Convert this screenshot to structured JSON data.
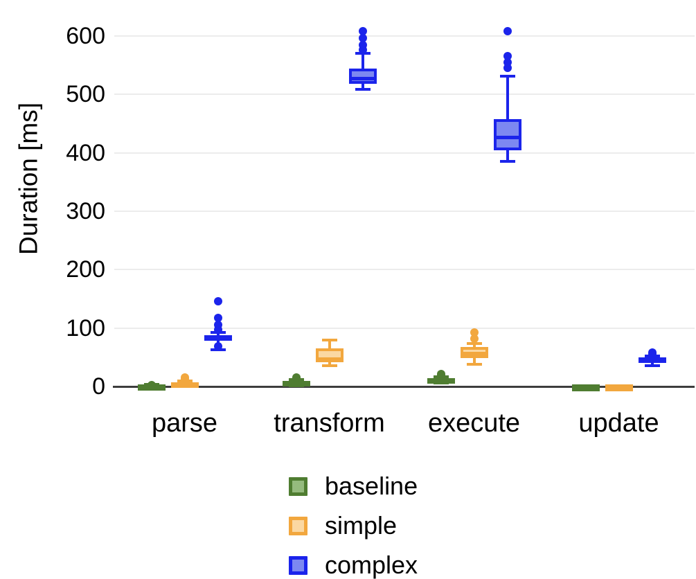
{
  "chart_data": {
    "type": "boxplot",
    "title": "",
    "xlabel": "",
    "ylabel": "Duration [ms]",
    "ylim": [
      0,
      620
    ],
    "yticks": [
      "0",
      "100",
      "200",
      "300",
      "400",
      "500",
      "600"
    ],
    "ytick_values": [
      0,
      100,
      200,
      300,
      400,
      500,
      600
    ],
    "categories": [
      "parse",
      "transform",
      "execute",
      "update"
    ],
    "grid": "horizontal light gray major lines",
    "legend_position": "bottom-center",
    "colors": {
      "grid": "#ececec",
      "axis": "#3d3d3d",
      "text": "#000000",
      "background": "#ffffff"
    },
    "series": [
      {
        "name": "baseline",
        "stroke": "#4f7d31",
        "fill": "#95bb7e",
        "boxes": [
          {
            "category": "parse",
            "lo": 0,
            "q1": 0,
            "med": 1,
            "q3": 2,
            "hi": 3,
            "outliers": [
              2
            ]
          },
          {
            "category": "transform",
            "lo": 1,
            "q1": 3,
            "med": 6,
            "q3": 10,
            "hi": 12,
            "outliers": [
              14,
              16
            ]
          },
          {
            "category": "execute",
            "lo": 6,
            "q1": 9,
            "med": 11,
            "q3": 14,
            "hi": 17,
            "outliers": [
              19,
              21
            ]
          },
          {
            "category": "update",
            "lo": 0,
            "q1": 0,
            "med": 0.5,
            "q3": 1,
            "hi": 1.5,
            "outliers": []
          }
        ]
      },
      {
        "name": "simple",
        "stroke": "#f2a73e",
        "fill": "#fbd8a2",
        "boxes": [
          {
            "category": "parse",
            "lo": 0,
            "q1": 1,
            "med": 4,
            "q3": 7,
            "hi": 9,
            "outliers": [
              11,
              13,
              15
            ]
          },
          {
            "category": "transform",
            "lo": 35,
            "q1": 41,
            "med": 47,
            "q3": 65,
            "hi": 79,
            "outliers": []
          },
          {
            "category": "execute",
            "lo": 38,
            "q1": 49,
            "med": 56,
            "q3": 67,
            "hi": 73,
            "outliers": [
              82,
              92
            ]
          },
          {
            "category": "update",
            "lo": 0,
            "q1": 0,
            "med": 0.5,
            "q3": 1,
            "hi": 1.5,
            "outliers": []
          }
        ]
      },
      {
        "name": "complex",
        "stroke": "#1b24eb",
        "fill": "#7d88f1",
        "boxes": [
          {
            "category": "parse",
            "lo": 63,
            "q1": 79,
            "med": 84,
            "q3": 88,
            "hi": 93,
            "outliers": [
              69,
              97,
              105,
              117,
              146
            ]
          },
          {
            "category": "transform",
            "lo": 509,
            "q1": 518,
            "med": 527,
            "q3": 544,
            "hi": 570,
            "outliers": [
              576,
              585,
              596,
              608
            ]
          },
          {
            "category": "execute",
            "lo": 385,
            "q1": 404,
            "med": 426,
            "q3": 458,
            "hi": 531,
            "outliers": [
              545,
              555,
              566,
              608
            ]
          },
          {
            "category": "update",
            "lo": 36,
            "q1": 40,
            "med": 45,
            "q3": 50,
            "hi": 52,
            "outliers": [
              56,
              58
            ]
          }
        ]
      }
    ]
  }
}
